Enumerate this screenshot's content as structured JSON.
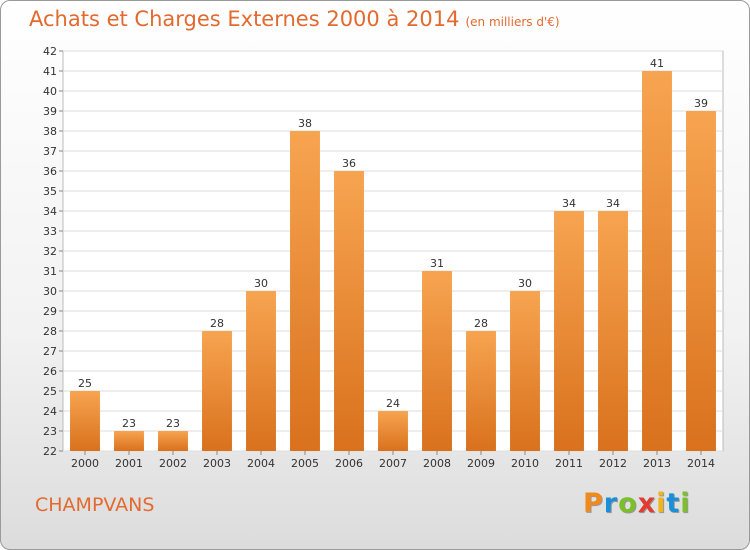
{
  "header": {
    "title": "Achats et Charges Externes 2000 à 2014",
    "subtitle": "(en milliers d'€)"
  },
  "footer": {
    "town": "CHAMPVANS",
    "brand": "Proxiti"
  },
  "colors": {
    "accent": "#e36a2f",
    "bar_top": "#f7a450",
    "bar_bottom": "#d9711d",
    "brand_letters": [
      "#f08a1c",
      "#1a8fd8",
      "#7bbf2a",
      "#e03c31",
      "#f0b51c",
      "#1a8fd8",
      "#7bbf2a"
    ]
  },
  "chart_data": {
    "type": "bar",
    "title": "Achats et Charges Externes 2000 à 2014",
    "subtitle": "(en milliers d'€)",
    "categories": [
      "2000",
      "2001",
      "2002",
      "2003",
      "2004",
      "2005",
      "2006",
      "2007",
      "2008",
      "2009",
      "2010",
      "2011",
      "2012",
      "2013",
      "2014"
    ],
    "values": [
      25,
      23,
      23,
      28,
      30,
      38,
      36,
      24,
      31,
      28,
      30,
      34,
      34,
      41,
      39
    ],
    "ylim": [
      22,
      42
    ],
    "yticks": [
      22,
      23,
      24,
      25,
      26,
      27,
      28,
      29,
      30,
      31,
      32,
      33,
      34,
      35,
      36,
      37,
      38,
      39,
      40,
      41,
      42
    ],
    "grid": true
  }
}
